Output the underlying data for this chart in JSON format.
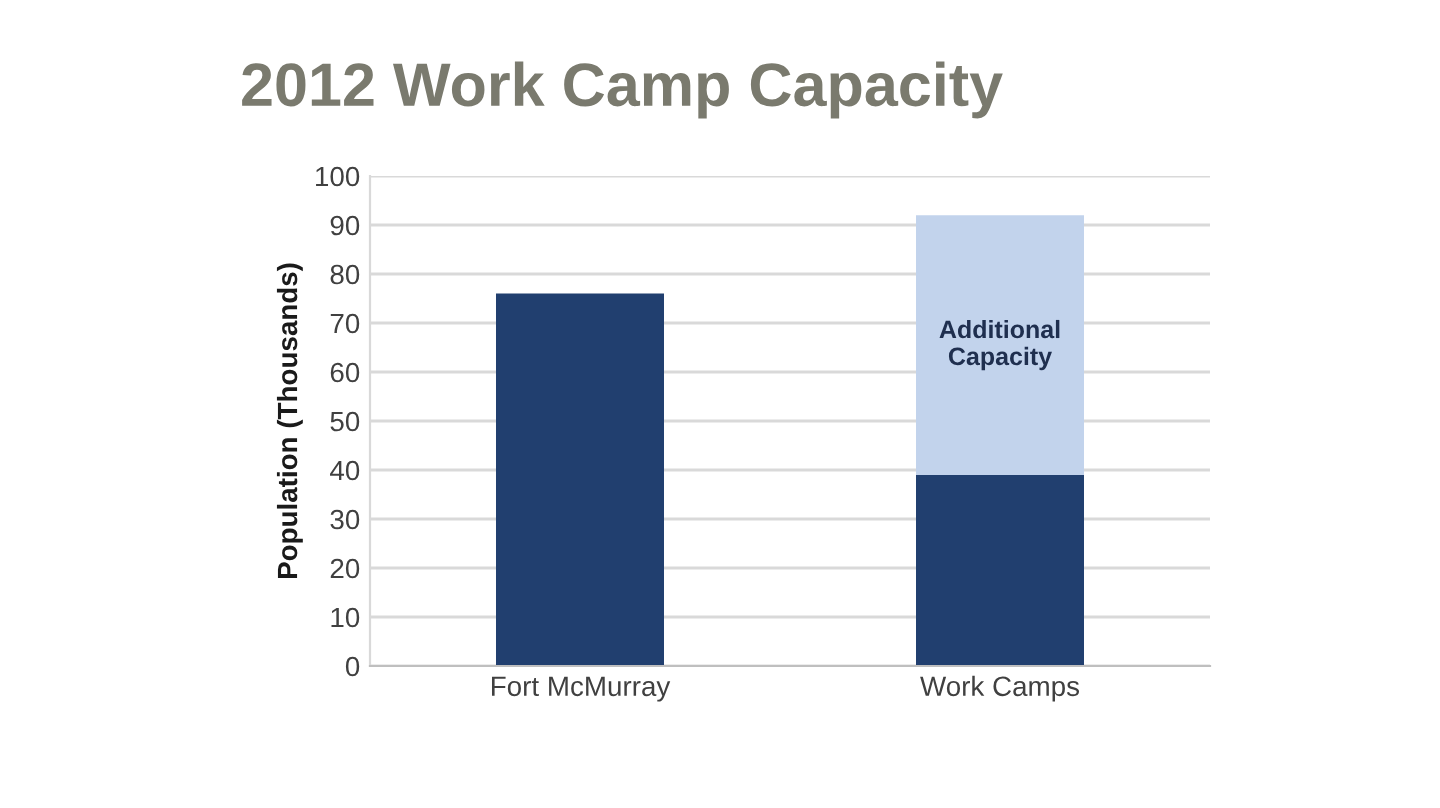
{
  "chart_data": {
    "type": "bar",
    "title": "2012 Work Camp Capacity",
    "ylabel": "Population (Thousands)",
    "categories": [
      "Fort McMurray",
      "Work Camps"
    ],
    "series": [
      {
        "color": "#213f6f",
        "values": [
          76,
          39
        ]
      },
      {
        "color": "#c2d3ec",
        "values": [
          null,
          53
        ]
      }
    ],
    "stacked": true,
    "annotations": [
      "Additional\nCapacity"
    ],
    "ylim": [
      0,
      100
    ],
    "yticks": [
      0,
      10,
      20,
      30,
      40,
      50,
      60,
      70,
      80,
      90,
      100
    ],
    "grid": "y"
  }
}
